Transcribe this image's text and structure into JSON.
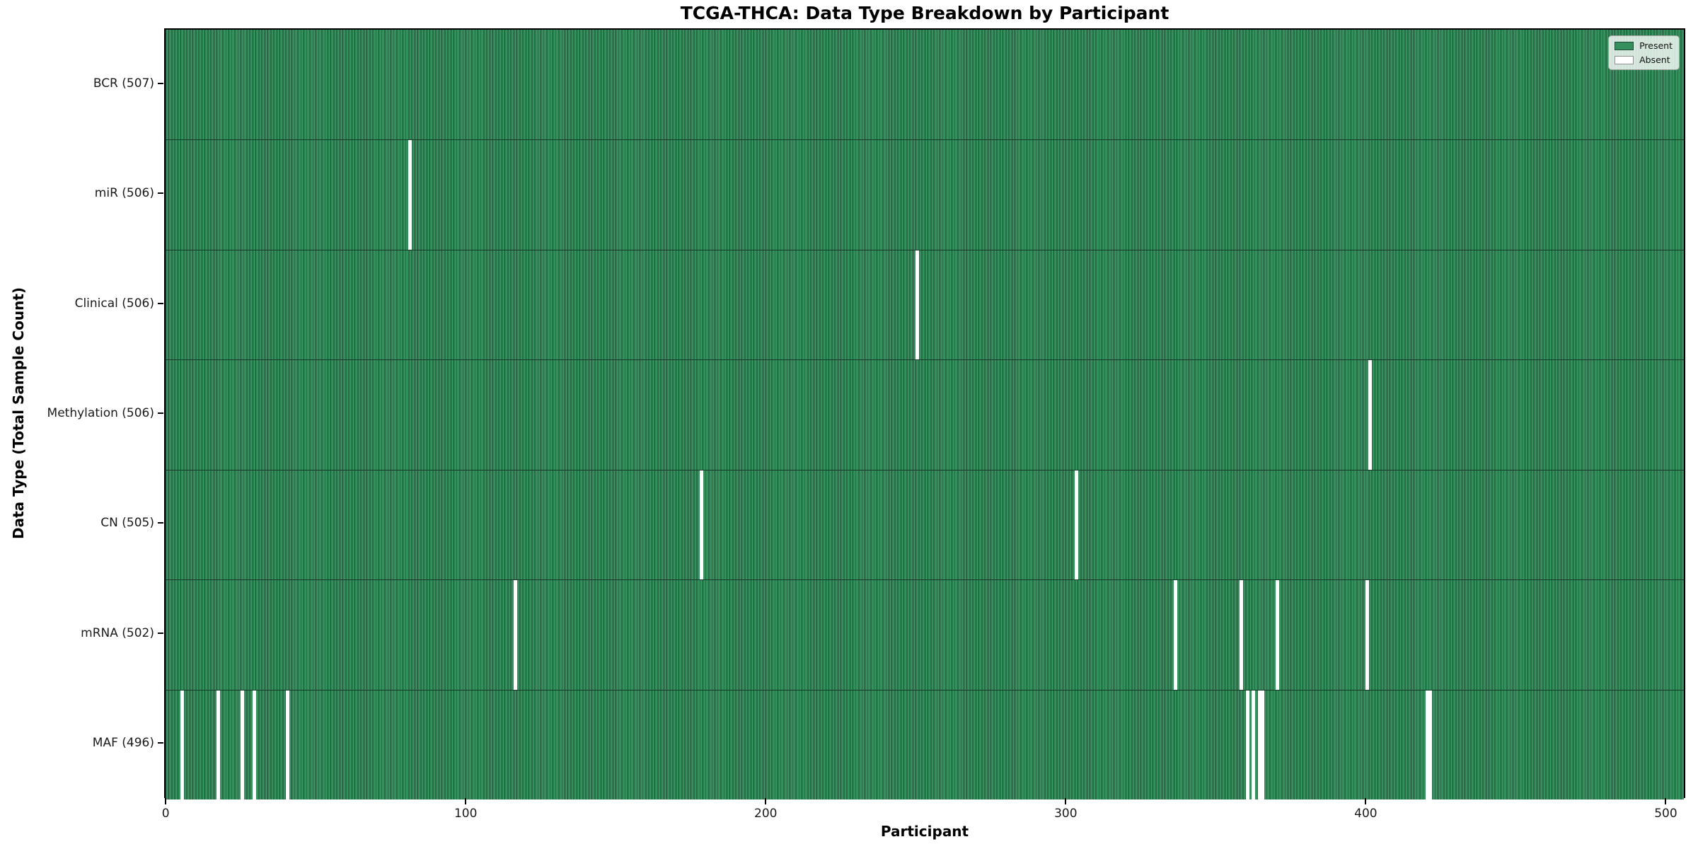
{
  "title": "TCGA-THCA: Data Type Breakdown by Participant",
  "x_axis_label": "Participant",
  "y_axis_label": "Data Type (Total Sample Count)",
  "legend": {
    "present_label": "Present",
    "absent_label": "Absent"
  },
  "colors": {
    "present_fill": "#35905e",
    "bar_edge": "#1d4a33",
    "absent_fill": "#ffffff",
    "row_separator": "#163a27",
    "axis": "#000000"
  },
  "chart_data": {
    "type": "heatmap",
    "title": "TCGA-THCA: Data Type Breakdown by Participant",
    "xlabel": "Participant",
    "ylabel": "Data Type (Total Sample Count)",
    "legend_entries": [
      "Present",
      "Absent"
    ],
    "legend_position": "upper right",
    "total_participants": 507,
    "x_ticks": [
      0,
      100,
      200,
      300,
      400,
      500
    ],
    "x_range": [
      0,
      507
    ],
    "grid": false,
    "rows": [
      {
        "name": "BCR",
        "label": "BCR (507)",
        "present_count": 507,
        "absent_participants": []
      },
      {
        "name": "miR",
        "label": "miR (506)",
        "present_count": 506,
        "absent_participants": [
          81
        ]
      },
      {
        "name": "Clinical",
        "label": "Clinical (506)",
        "present_count": 506,
        "absent_participants": [
          250
        ]
      },
      {
        "name": "Methylation",
        "label": "Methylation (506)",
        "present_count": 506,
        "absent_participants": [
          401
        ]
      },
      {
        "name": "CN",
        "label": "CN (505)",
        "present_count": 505,
        "absent_participants": [
          178,
          303
        ]
      },
      {
        "name": "mRNA",
        "label": "mRNA (502)",
        "present_count": 502,
        "absent_participants": [
          116,
          336,
          358,
          370,
          400
        ]
      },
      {
        "name": "MAF",
        "label": "MAF (496)",
        "present_count": 496,
        "absent_participants": [
          5,
          17,
          25,
          29,
          40,
          360,
          362,
          364,
          365,
          420,
          421
        ]
      }
    ]
  }
}
